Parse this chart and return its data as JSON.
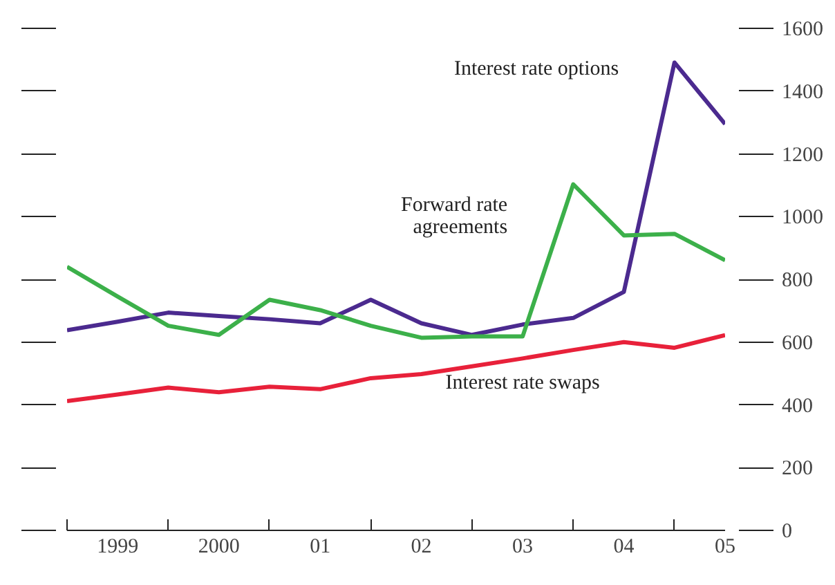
{
  "chart_data": {
    "type": "line",
    "x": [
      1998.5,
      1999,
      1999.5,
      2000,
      2000.5,
      2001,
      2001.5,
      2002,
      2002.5,
      2003,
      2003.5,
      2004,
      2004.5,
      2005
    ],
    "series": [
      {
        "name": "Interest rate options",
        "color": "#4b2a8f",
        "values": [
          638,
          665,
          694,
          683,
          673,
          660,
          735,
          660,
          623,
          656,
          677,
          760,
          1491,
          1295
        ]
      },
      {
        "name": "Forward rate agreements",
        "color": "#3cb04a",
        "values": [
          840,
          745,
          652,
          623,
          735,
          702,
          652,
          614,
          618,
          618,
          1103,
          940,
          945,
          861
        ]
      },
      {
        "name": "Interest rate swaps",
        "color": "#e8213a",
        "values": [
          412,
          433,
          455,
          440,
          458,
          450,
          485,
          498,
          523,
          548,
          575,
          600,
          582,
          622
        ]
      }
    ],
    "xlim": [
      1998.5,
      2005
    ],
    "xticks": [
      {
        "value": 1998.5,
        "label": null
      },
      {
        "value": 1999,
        "label": "1999"
      },
      {
        "value": 1999.5,
        "label": null
      },
      {
        "value": 2000,
        "label": "2000"
      },
      {
        "value": 2000.5,
        "label": null
      },
      {
        "value": 2001,
        "label": "01"
      },
      {
        "value": 2001.5,
        "label": null
      },
      {
        "value": 2002,
        "label": "02"
      },
      {
        "value": 2002.5,
        "label": null
      },
      {
        "value": 2003,
        "label": "03"
      },
      {
        "value": 2003.5,
        "label": null
      },
      {
        "value": 2004,
        "label": "04"
      },
      {
        "value": 2004.5,
        "label": null
      },
      {
        "value": 2005,
        "label": "05"
      }
    ],
    "ylim": [
      0,
      1600
    ],
    "yticks": [
      0,
      200,
      400,
      600,
      800,
      1000,
      1200,
      1400,
      1600
    ],
    "grid": false,
    "marker": "none",
    "line_style": "solid"
  }
}
